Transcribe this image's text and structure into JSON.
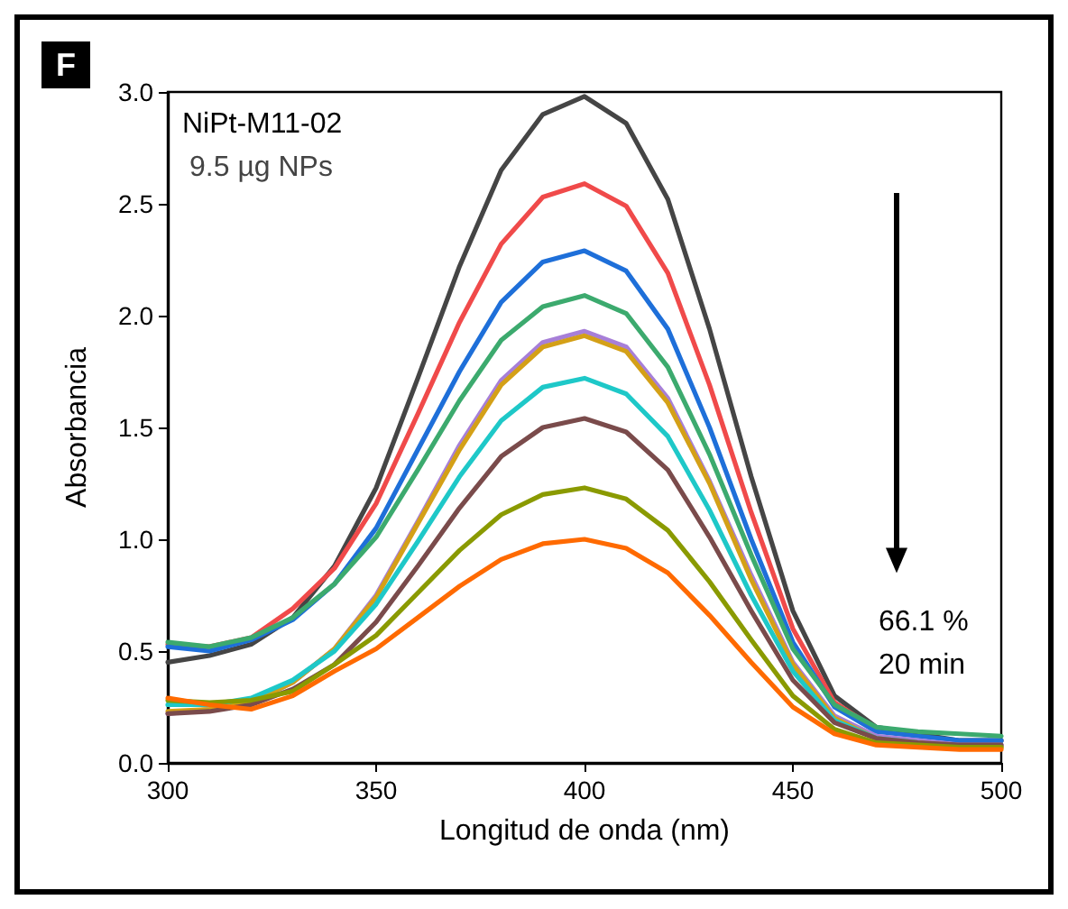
{
  "chart_data": {
    "type": "line",
    "xlabel": "Longitud de onda (nm)",
    "ylabel": "Absorbancia",
    "annotations": [
      "F",
      "NiPt-M11-02",
      "9.5 µg NPs",
      "66.1 %\n20 min"
    ],
    "x": [
      300,
      310,
      320,
      330,
      340,
      350,
      360,
      370,
      380,
      390,
      400,
      410,
      420,
      430,
      440,
      450,
      460,
      470,
      480,
      490,
      500
    ],
    "xlim": [
      300,
      500
    ],
    "xticks": [
      300,
      350,
      400,
      450,
      500
    ],
    "ylim": [
      0,
      3
    ],
    "yticks": [
      {
        "value": 0,
        "label": "0.0"
      },
      0.5,
      {
        "value": 1,
        "label": "1.0"
      },
      1.5,
      {
        "value": 2,
        "label": "2.0"
      },
      2.5,
      {
        "value": 3,
        "label": "3.0"
      }
    ],
    "grid": false,
    "marker": "none",
    "line_style": "solid",
    "series": [
      {
        "color": "#454545",
        "values": [
          0.45,
          0.48,
          0.53,
          0.65,
          0.88,
          1.23,
          1.72,
          2.22,
          2.65,
          2.9,
          2.98,
          2.86,
          2.52,
          1.94,
          1.28,
          0.68,
          0.3,
          0.16,
          0.13,
          0.1,
          0.1
        ]
      },
      {
        "color": "#f04a4a",
        "values": [
          0.53,
          0.52,
          0.56,
          0.69,
          0.87,
          1.16,
          1.56,
          1.97,
          2.32,
          2.53,
          2.59,
          2.49,
          2.19,
          1.69,
          1.12,
          0.6,
          0.27,
          0.15,
          null,
          null,
          null
        ]
      },
      {
        "color": "#1e6fd9",
        "values": [
          0.52,
          0.5,
          0.55,
          0.64,
          0.8,
          1.05,
          1.4,
          1.75,
          2.06,
          2.24,
          2.29,
          2.2,
          1.94,
          1.5,
          1.0,
          0.54,
          0.25,
          0.14,
          0.12,
          0.1,
          0.1
        ]
      },
      {
        "color": "#3caa6e",
        "values": [
          0.54,
          0.52,
          0.56,
          0.65,
          0.8,
          1.01,
          1.31,
          1.62,
          1.89,
          2.04,
          2.09,
          2.01,
          1.77,
          1.38,
          0.93,
          0.51,
          0.26,
          0.16,
          0.14,
          0.13,
          0.12
        ]
      },
      {
        "color": "#a77fd8",
        "values": [
          0.22,
          0.24,
          0.27,
          0.36,
          0.51,
          0.75,
          1.08,
          1.42,
          1.71,
          1.88,
          1.93,
          1.86,
          1.63,
          1.26,
          0.84,
          0.45,
          0.21,
          0.12,
          0.1,
          0.08,
          0.08
        ]
      },
      {
        "color": "#d4a017",
        "values": [
          0.23,
          0.24,
          0.27,
          0.36,
          0.51,
          0.74,
          1.07,
          1.4,
          1.69,
          1.86,
          1.91,
          1.84,
          1.61,
          1.25,
          0.82,
          0.44,
          0.2,
          0.11,
          0.09,
          0.07,
          0.07
        ]
      },
      {
        "color": "#1ec8c8",
        "values": [
          0.26,
          0.26,
          0.29,
          0.37,
          0.5,
          0.71,
          0.99,
          1.28,
          1.53,
          1.68,
          1.72,
          1.65,
          1.46,
          1.13,
          0.75,
          0.41,
          0.19,
          0.11,
          0.09,
          null,
          null
        ]
      },
      {
        "color": "#7a4b4b",
        "values": [
          0.22,
          0.23,
          0.26,
          0.33,
          0.44,
          0.63,
          0.88,
          1.14,
          1.37,
          1.5,
          1.54,
          1.48,
          1.31,
          1.01,
          0.68,
          0.37,
          0.18,
          0.11,
          0.09,
          0.08,
          0.08
        ]
      },
      {
        "color": "#8a9a00",
        "values": [
          0.28,
          0.27,
          0.28,
          0.32,
          0.44,
          0.57,
          0.76,
          0.95,
          1.11,
          1.2,
          1.23,
          1.18,
          1.04,
          0.81,
          0.55,
          0.3,
          0.15,
          0.09,
          0.08,
          0.07,
          0.07
        ]
      },
      {
        "color": "#ff6a00",
        "values": [
          0.29,
          0.26,
          0.24,
          0.3,
          0.41,
          0.51,
          0.65,
          0.79,
          0.91,
          0.98,
          1.0,
          0.96,
          0.85,
          0.66,
          0.45,
          0.25,
          0.13,
          0.08,
          0.07,
          0.06,
          0.06
        ]
      }
    ]
  }
}
